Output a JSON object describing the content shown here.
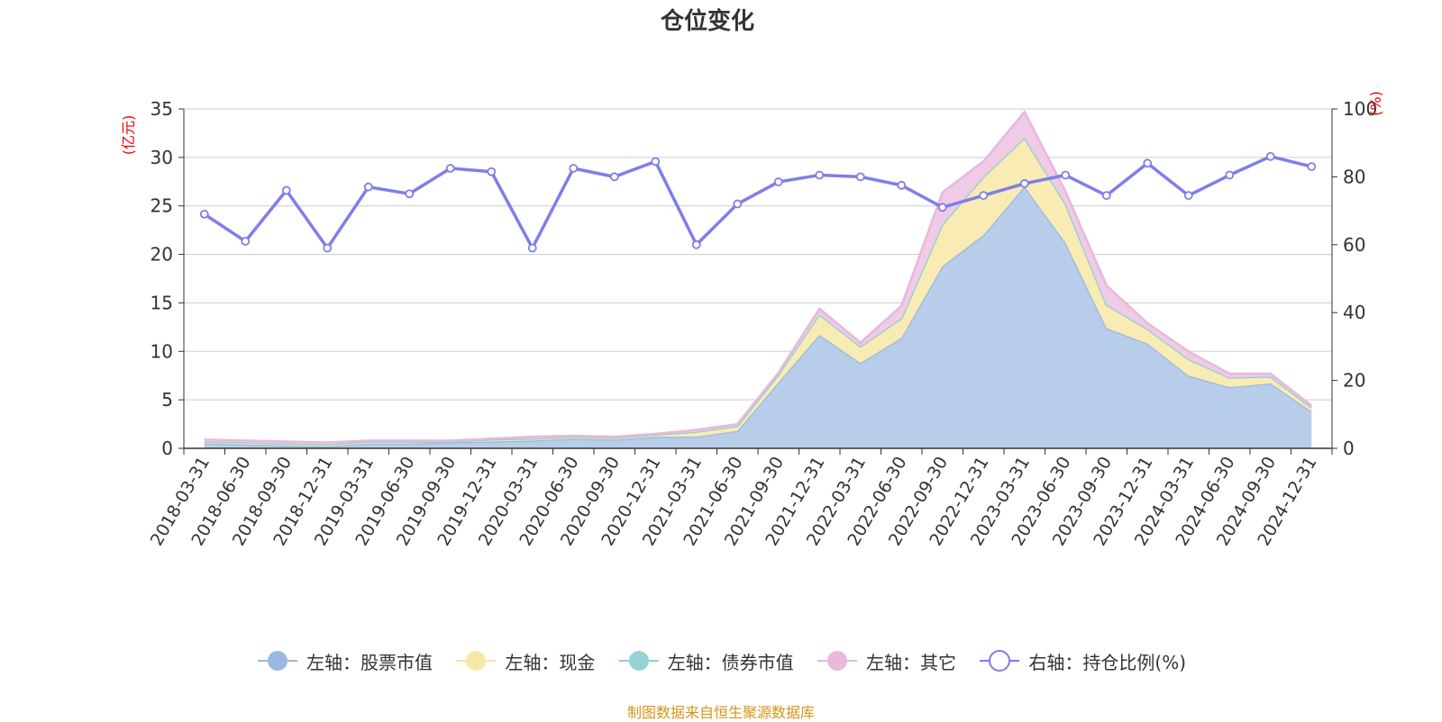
{
  "chart_data": {
    "type": "area",
    "title": "仓位变化",
    "ylabel_left": "亿元",
    "ylabel_right": "%",
    "ylim_left": [
      0,
      35
    ],
    "yticks_left": [
      0,
      5,
      10,
      15,
      20,
      25,
      30,
      35
    ],
    "ylim_right": [
      0,
      100
    ],
    "yticks_right": [
      0,
      20,
      40,
      60,
      80,
      100
    ],
    "categories": [
      "2018-03-31",
      "2018-06-30",
      "2018-09-30",
      "2018-12-31",
      "2019-03-31",
      "2019-06-30",
      "2019-09-30",
      "2019-12-31",
      "2020-03-31",
      "2020-06-30",
      "2020-09-30",
      "2020-12-31",
      "2021-03-31",
      "2021-06-30",
      "2021-09-30",
      "2021-12-31",
      "2022-03-31",
      "2022-06-30",
      "2022-09-30",
      "2022-12-31",
      "2023-03-31",
      "2023-06-30",
      "2023-09-30",
      "2023-12-31",
      "2024-03-31",
      "2024-06-30",
      "2024-09-30",
      "2024-12-31"
    ],
    "stacked_series": [
      {
        "name": "左轴：股票市值",
        "axis": "left",
        "color": "#9ab8e0",
        "fill": "#b8cdea",
        "values": [
          0.5,
          0.4,
          0.3,
          0.2,
          0.5,
          0.5,
          0.6,
          0.7,
          0.8,
          1.0,
          0.9,
          1.2,
          1.2,
          1.8,
          6.8,
          11.7,
          8.8,
          11.4,
          18.8,
          22.0,
          27.0,
          21.2,
          12.4,
          10.8,
          7.5,
          6.3,
          6.7,
          3.8
        ]
      },
      {
        "name": "左轴：现金",
        "axis": "left",
        "color": "#f5e6a0",
        "fill": "#f8ebb3",
        "values": [
          0.2,
          0.2,
          0.2,
          0.2,
          0.2,
          0.2,
          0.1,
          0.2,
          0.2,
          0.2,
          0.2,
          0.2,
          0.5,
          0.5,
          0.8,
          2.1,
          1.7,
          2.0,
          4.3,
          6.0,
          5.0,
          4.0,
          2.4,
          1.5,
          1.7,
          1.0,
          0.7,
          0.4
        ]
      },
      {
        "name": "左轴：债券市值",
        "axis": "left",
        "color": "#8fd0d3",
        "fill": "#aadcde",
        "values": [
          0,
          0,
          0,
          0,
          0,
          0,
          0,
          0,
          0,
          0,
          0,
          0,
          0,
          0,
          0,
          0,
          0,
          0,
          0,
          0,
          0,
          0,
          0,
          0,
          0,
          0,
          0,
          0
        ]
      },
      {
        "name": "左轴：其它",
        "axis": "left",
        "color": "#e6b9dc",
        "fill": "#efcbe6",
        "values": [
          0.2,
          0.2,
          0.2,
          0.2,
          0.1,
          0.1,
          0.1,
          0.1,
          0.2,
          0.1,
          0.1,
          0.1,
          0.2,
          0.2,
          0.2,
          0.6,
          0.4,
          1.3,
          3.3,
          1.6,
          2.7,
          1.3,
          2.0,
          0.6,
          0.8,
          0.4,
          0.3,
          0.2
        ]
      }
    ],
    "line_series": {
      "name": "右轴：持仓比例(%)",
      "axis": "right",
      "color": "#7f7ee9",
      "values": [
        69,
        61,
        76,
        59,
        77,
        75,
        82.5,
        81.5,
        59,
        82.5,
        80,
        84.5,
        60,
        72,
        78.5,
        80.5,
        80,
        77.5,
        71,
        74.5,
        78,
        80.5,
        74.5,
        84,
        74.5,
        80.5,
        86,
        83
      ]
    }
  },
  "source_text": "制图数据来自恒生聚源数据库"
}
